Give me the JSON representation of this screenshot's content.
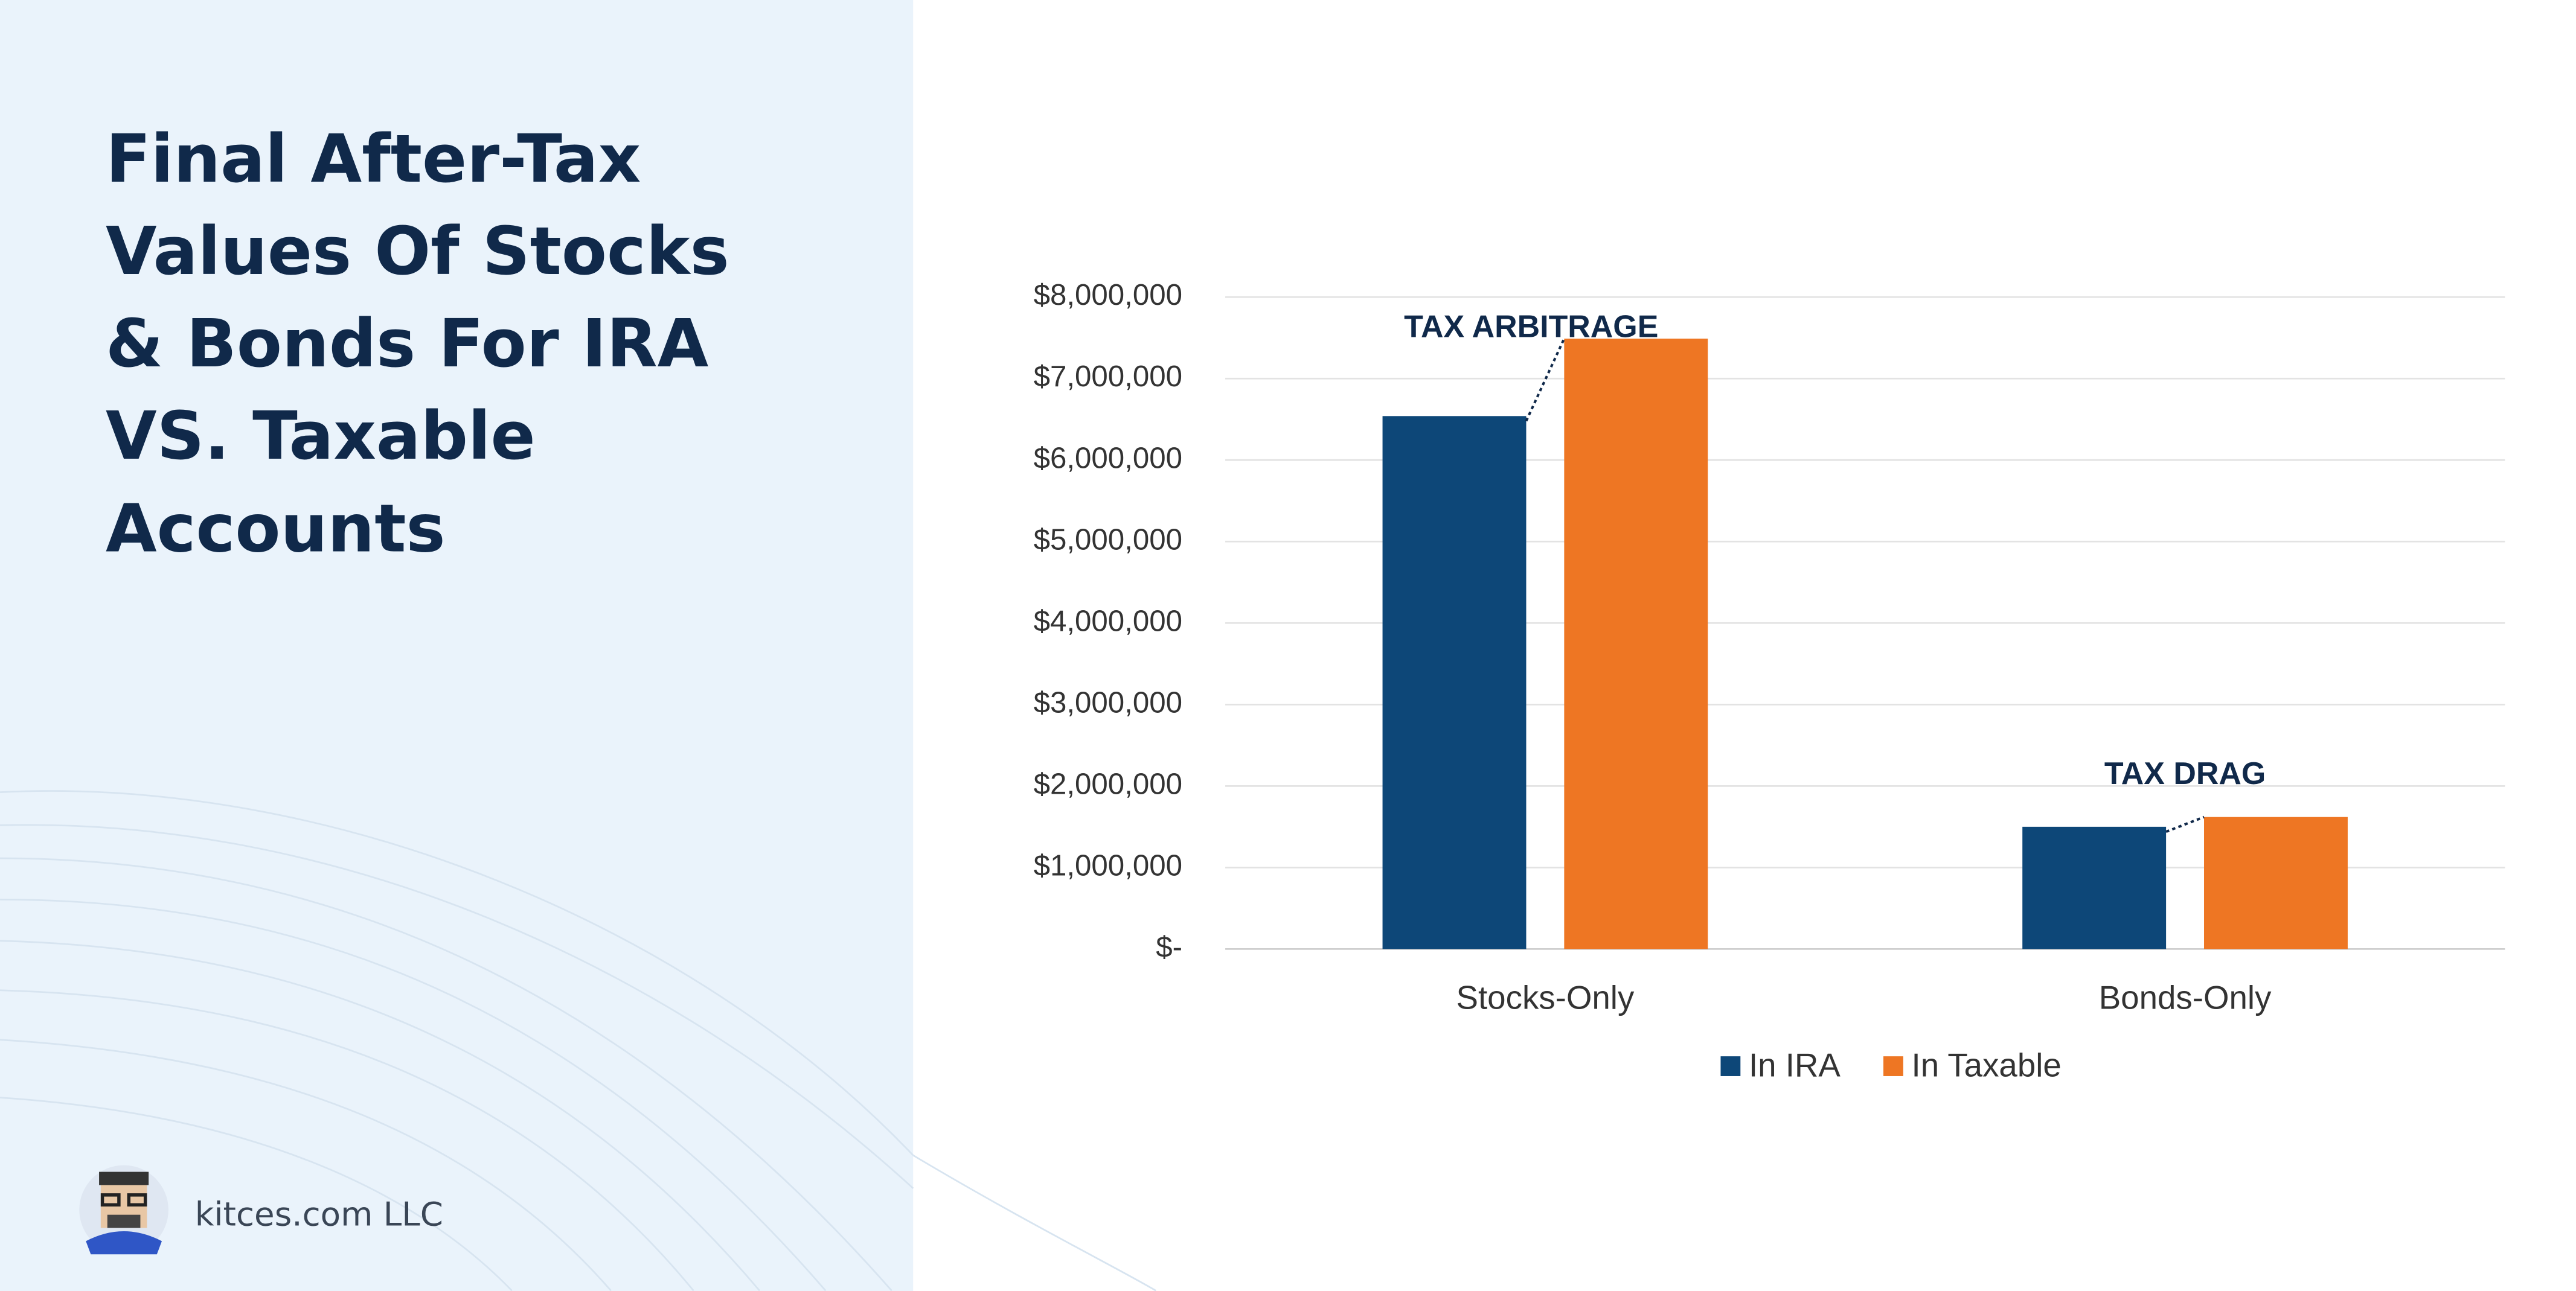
{
  "chart_data": {
    "type": "bar",
    "title": [
      "Final After-Tax",
      "Values Of Stocks",
      "& Bonds For IRA",
      "VS. Taxable",
      "Accounts"
    ],
    "categories": [
      "Stocks-Only",
      "Bonds-Only"
    ],
    "series": [
      {
        "name": "In IRA",
        "color": "#0d4778",
        "values": [
          6540000,
          1500000
        ]
      },
      {
        "name": "In Taxable",
        "color": "#ee7623",
        "values": [
          7490000,
          1620000
        ]
      }
    ],
    "ylim": [
      0,
      8000000
    ],
    "yticks": [
      {
        "value": 0,
        "label": "$-"
      },
      {
        "value": 1000000,
        "label": "$1,000,000"
      },
      {
        "value": 2000000,
        "label": "$2,000,000"
      },
      {
        "value": 3000000,
        "label": "$3,000,000"
      },
      {
        "value": 4000000,
        "label": "$4,000,000"
      },
      {
        "value": 5000000,
        "label": "$5,000,000"
      },
      {
        "value": 6000000,
        "label": "$6,000,000"
      },
      {
        "value": 7000000,
        "label": "$7,000,000"
      },
      {
        "value": 8000000,
        "label": "$8,000,000"
      }
    ],
    "grid": true,
    "legend": "bottom",
    "annotations": [
      "TAX ARBITRAGE",
      "TAX DRAG"
    ],
    "footer": "kitces.com LLC"
  }
}
